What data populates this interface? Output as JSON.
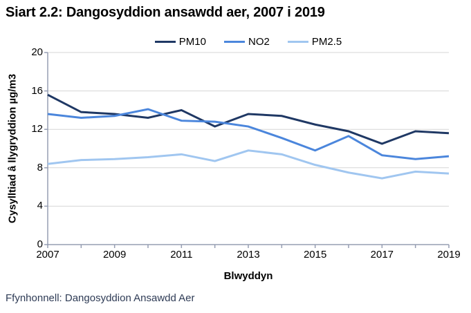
{
  "source_note": "Ffynhonnell: Dangosyddion Ansawdd Aer",
  "colors": {
    "grid": "#D6D6D6",
    "axis": "#959DB2",
    "text": "#000000",
    "source_text": "#2E3B55"
  },
  "chart_data": {
    "type": "line",
    "title": "Siart 2.2: Dangosyddion ansawdd aer, 2007 i 2019",
    "xlabel": "Blwyddyn",
    "ylabel": "Cysylltiad â llygryddion µg/m3",
    "x": [
      2007,
      2008,
      2009,
      2010,
      2011,
      2012,
      2013,
      2014,
      2015,
      2016,
      2017,
      2018,
      2019
    ],
    "xticks": [
      2007,
      2009,
      2011,
      2013,
      2015,
      2017,
      2019
    ],
    "yticks": [
      0,
      4,
      8,
      12,
      16,
      20
    ],
    "ylim": [
      0,
      20
    ],
    "grid": true,
    "legend_position": "top",
    "series": [
      {
        "name": "PM10",
        "color": "#1F3864",
        "values": [
          15.6,
          13.8,
          13.6,
          13.2,
          14.0,
          12.3,
          13.6,
          13.4,
          12.5,
          11.8,
          10.5,
          11.8,
          11.6
        ]
      },
      {
        "name": "NO2",
        "color": "#4B86DC",
        "values": [
          13.6,
          13.2,
          13.4,
          14.1,
          12.9,
          12.8,
          12.3,
          11.1,
          9.8,
          11.3,
          9.3,
          8.9,
          9.2
        ]
      },
      {
        "name": "PM2.5",
        "color": "#A0C6F0",
        "values": [
          8.4,
          8.8,
          8.9,
          9.1,
          9.4,
          8.7,
          9.8,
          9.4,
          8.3,
          7.5,
          6.9,
          7.6,
          7.4
        ]
      }
    ]
  }
}
